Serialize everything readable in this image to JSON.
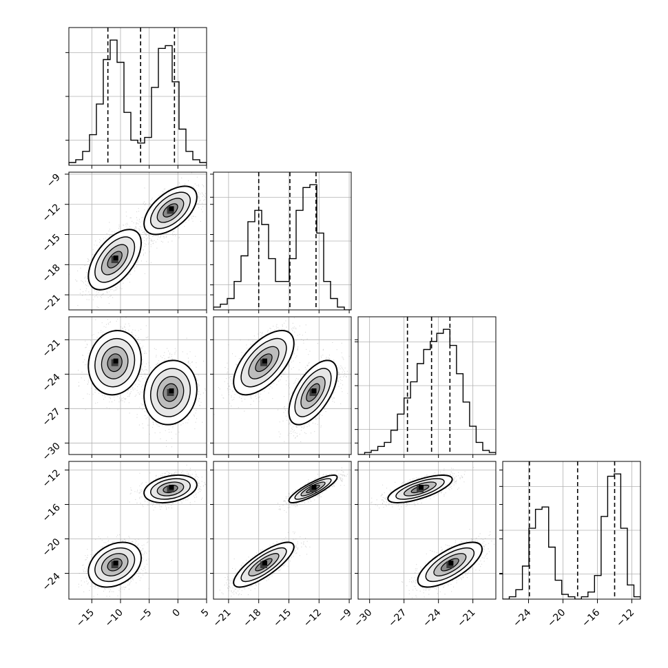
{
  "chart_data": {
    "type": "corner",
    "parameters": 4,
    "grid": true,
    "params": [
      {
        "ticks": [
          -15,
          -10,
          -5,
          0,
          5
        ],
        "range": [
          -19,
          5
        ],
        "quantiles": [
          -12.2,
          -6.5,
          -0.6
        ]
      },
      {
        "ticks": [
          -21,
          -18,
          -15,
          -12,
          -9
        ],
        "range": [
          -22.5,
          -8.8
        ],
        "quantiles": [
          -18.0,
          -14.9,
          -12.3
        ]
      },
      {
        "ticks": [
          -30,
          -27,
          -24,
          -21
        ],
        "range": [
          -31.0,
          -19.0
        ],
        "quantiles": [
          -26.7,
          -24.6,
          -23.0
        ]
      },
      {
        "ticks": [
          -24,
          -20,
          -16,
          -12
        ],
        "range": [
          -27.0,
          -11.0
        ],
        "quantiles": [
          -23.9,
          -18.3,
          -14.0
        ]
      }
    ],
    "marginals": [
      {
        "index": 0,
        "counts": [
          1,
          2,
          5,
          11,
          22,
          38,
          45,
          37,
          19,
          9,
          8,
          10,
          28,
          42,
          43,
          30,
          13,
          5,
          2,
          1
        ]
      },
      {
        "index": 1,
        "counts": [
          1,
          2,
          4,
          10,
          19,
          31,
          35,
          30,
          18,
          10,
          10,
          18,
          35,
          43,
          44,
          27,
          10,
          4,
          1,
          0
        ]
      },
      {
        "index": 2,
        "counts": [
          0,
          1,
          2,
          4,
          6,
          12,
          20,
          28,
          36,
          45,
          52,
          56,
          60,
          62,
          54,
          40,
          26,
          14,
          6,
          2,
          1
        ]
      },
      {
        "index": 3,
        "counts": [
          0,
          1,
          4,
          14,
          30,
          38,
          39,
          22,
          8,
          2,
          1,
          0,
          1,
          3,
          10,
          35,
          52,
          53,
          30,
          6,
          1
        ]
      }
    ],
    "modes": [
      {
        "weight": 0.5,
        "mean": [
          -11,
          -17.5,
          -23,
          -23
        ],
        "sd": [
          2.3,
          1.5,
          1.4,
          1.3
        ]
      },
      {
        "weight": 0.5,
        "mean": [
          -1.3,
          -12.6,
          -25.6,
          -14.2
        ],
        "sd": [
          2.3,
          1.2,
          1.4,
          0.8
        ]
      }
    ],
    "correlations": [
      {
        "pair": [
          1,
          0
        ],
        "modes": [
          0.55,
          0.55
        ]
      },
      {
        "pair": [
          2,
          0
        ],
        "modes": [
          0.1,
          0.1
        ]
      },
      {
        "pair": [
          2,
          1
        ],
        "modes": [
          0.6,
          0.6
        ]
      },
      {
        "pair": [
          3,
          0
        ],
        "modes": [
          0.3,
          0.3
        ]
      },
      {
        "pair": [
          3,
          1
        ],
        "modes": [
          0.8,
          0.85
        ]
      },
      {
        "pair": [
          3,
          2
        ],
        "modes": [
          0.7,
          0.7
        ]
      }
    ]
  }
}
